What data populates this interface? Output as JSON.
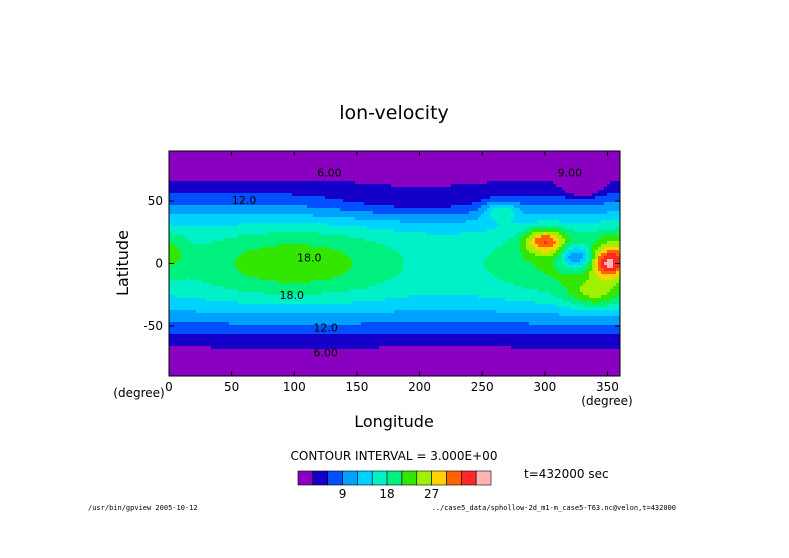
{
  "chart_data": {
    "type": "heatmap",
    "title": "lon-velocity",
    "xlabel": "Longitude",
    "ylabel": "Latitude",
    "x_unit": "(degree)",
    "y_unit": "(degree)",
    "xlim": [
      0,
      360
    ],
    "ylim": [
      -90,
      90
    ],
    "x_ticks": [
      0,
      50,
      100,
      150,
      200,
      250,
      300,
      350
    ],
    "y_ticks": [
      -50,
      0,
      50
    ],
    "contour_interval_label": "CONTOUR INTERVAL = 3.000E+00",
    "time_label": "t=432000 sec",
    "colorbar": {
      "levels": [
        0,
        3,
        6,
        9,
        12,
        15,
        18,
        21,
        24,
        27,
        30,
        33,
        36
      ],
      "tick_labels": [
        "9",
        "18",
        "27"
      ],
      "colors": [
        "#8a00c0",
        "#1400c8",
        "#0050ff",
        "#00a0ff",
        "#00d2ff",
        "#00f0c8",
        "#00f080",
        "#32e600",
        "#a0f000",
        "#ffd200",
        "#ff6400",
        "#ff2828",
        "#ffb4b4"
      ]
    },
    "contour_labels": [
      {
        "text": "6.00",
        "lon": 128,
        "lat": 73
      },
      {
        "text": "12.0",
        "lon": 60,
        "lat": 51
      },
      {
        "text": "18.0",
        "lon": 112,
        "lat": 5
      },
      {
        "text": "18.0",
        "lon": 98,
        "lat": -25
      },
      {
        "text": "12.0",
        "lon": 125,
        "lat": -51
      },
      {
        "text": "6.00",
        "lon": 125,
        "lat": -71
      },
      {
        "text": "9.00",
        "lon": 320,
        "lat": 73
      }
    ]
  },
  "footer": {
    "left": "/usr/bin/gpview  2005-10-12",
    "right": "../case5_data/sphollow-2d_m1-m_case5-T63.nc@velon,t=432000"
  }
}
